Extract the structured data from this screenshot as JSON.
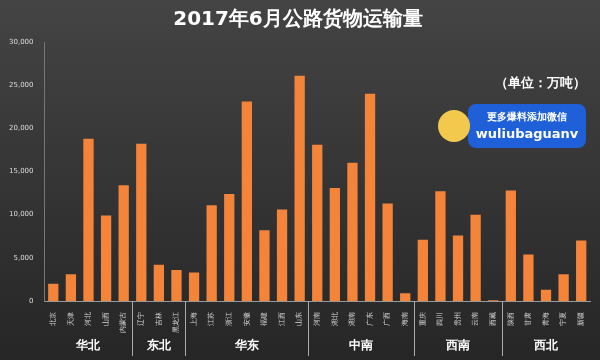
{
  "chart_data": {
    "type": "bar",
    "title": "2017年6月公路货物运输量",
    "annotations": [
      "（单位：万吨）",
      "更多爆料添加微信",
      "wuliubaguanv"
    ],
    "categories": [
      "北京",
      "天津",
      "河北",
      "山西",
      "内蒙古",
      "辽宁",
      "吉林",
      "黑龙江",
      "上海",
      "江苏",
      "浙江",
      "安徽",
      "福建",
      "江西",
      "山东",
      "河南",
      "湖北",
      "湖南",
      "广东",
      "广西",
      "海南",
      "重庆",
      "四川",
      "贵州",
      "云南",
      "西藏",
      "陕西",
      "甘肃",
      "青海",
      "宁夏",
      "新疆"
    ],
    "values": [
      2000,
      3100,
      18800,
      9900,
      13400,
      18200,
      4200,
      3600,
      3300,
      11100,
      12400,
      23100,
      8200,
      10600,
      26100,
      18100,
      13100,
      16000,
      24000,
      11300,
      900,
      7100,
      12700,
      7600,
      10000,
      100,
      12800,
      5400,
      1300,
      3100,
      7000
    ],
    "groups": [
      {
        "name": "华北",
        "count": 5
      },
      {
        "name": "东北",
        "count": 3
      },
      {
        "name": "华东",
        "count": 7
      },
      {
        "name": "中南",
        "count": 6
      },
      {
        "name": "西南",
        "count": 5
      },
      {
        "name": "西北",
        "count": 5
      }
    ],
    "color": "#f4843a",
    "ylim": [
      0,
      30000
    ],
    "yticks": [
      0,
      5000,
      10000,
      15000,
      20000,
      25000,
      30000
    ],
    "grid": false
  }
}
